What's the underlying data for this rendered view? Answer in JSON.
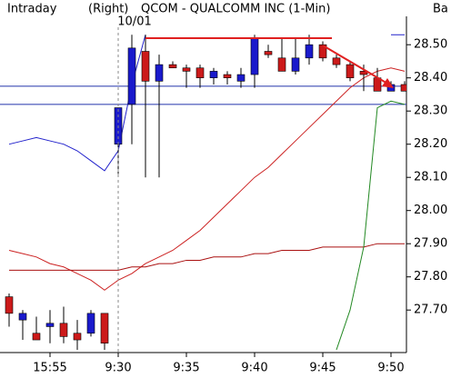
{
  "chart_data": {
    "type": "candlestick",
    "title_left": "Intraday",
    "side": "(Right)",
    "title": "QCOM - QUALCOMM INC (1-Min)",
    "corner": "Ba",
    "session_label": "10/01",
    "session_index": 8,
    "categories": [
      null,
      null,
      null,
      "15:55",
      null,
      null,
      null,
      null,
      "9:30",
      null,
      null,
      null,
      null,
      "9:35",
      null,
      null,
      null,
      null,
      "9:40",
      null,
      null,
      null,
      null,
      "9:45",
      null,
      null,
      null,
      null,
      "9:50",
      null
    ],
    "open": [
      27.74,
      27.67,
      27.63,
      27.65,
      27.66,
      27.63,
      27.63,
      27.69,
      28.2,
      28.32,
      28.48,
      28.39,
      28.44,
      28.43,
      28.43,
      28.4,
      28.41,
      28.39,
      28.41,
      28.48,
      28.46,
      28.42,
      28.46,
      28.5,
      28.46,
      28.44,
      28.42,
      28.4,
      28.36,
      28.38
    ],
    "high": [
      27.75,
      27.7,
      27.68,
      27.7,
      27.71,
      27.67,
      27.7,
      27.69,
      28.31,
      28.53,
      28.53,
      28.47,
      28.45,
      28.44,
      28.44,
      28.43,
      28.42,
      28.43,
      28.53,
      28.5,
      28.52,
      28.52,
      28.53,
      28.51,
      28.47,
      28.45,
      28.44,
      28.43,
      28.39,
      28.39
    ],
    "low": [
      27.65,
      27.61,
      27.61,
      27.6,
      27.6,
      27.58,
      27.62,
      27.58,
      28.11,
      28.2,
      28.1,
      28.1,
      28.43,
      28.37,
      28.37,
      28.38,
      28.38,
      28.37,
      28.37,
      28.46,
      28.42,
      28.41,
      28.44,
      28.45,
      28.43,
      28.39,
      28.36,
      28.36,
      28.36,
      28.36
    ],
    "close": [
      27.69,
      27.69,
      27.61,
      27.66,
      27.62,
      27.61,
      27.69,
      27.6,
      28.31,
      28.49,
      28.39,
      28.44,
      28.43,
      28.42,
      28.4,
      28.42,
      28.4,
      28.41,
      28.52,
      28.47,
      28.42,
      28.46,
      28.5,
      28.46,
      28.44,
      28.4,
      28.41,
      28.36,
      28.38,
      28.36
    ],
    "up_color": "#1a1acc",
    "down_color": "#cc1a1a",
    "lines": [
      {
        "color": "#2222cc",
        "values": [
          28.2,
          28.21,
          28.22,
          28.21,
          28.2,
          28.18,
          28.15,
          28.12,
          28.18,
          28.38,
          28.53,
          null,
          null,
          null,
          null,
          null,
          null,
          null,
          null,
          null,
          null,
          null,
          null,
          null,
          null,
          null,
          null,
          null,
          28.53,
          28.53
        ]
      },
      {
        "color": "#cc2222",
        "values": [
          27.88,
          27.87,
          27.86,
          27.84,
          27.83,
          27.81,
          27.79,
          27.76,
          27.79,
          27.81,
          27.84,
          27.86,
          27.88,
          27.91,
          27.94,
          27.98,
          28.02,
          28.06,
          28.1,
          28.13,
          28.17,
          28.21,
          28.25,
          28.29,
          28.33,
          28.37,
          28.4,
          28.42,
          28.43,
          28.42
        ]
      },
      {
        "color": "#aa1111",
        "values": [
          27.82,
          27.82,
          27.82,
          27.82,
          27.82,
          27.82,
          27.82,
          27.82,
          27.82,
          27.83,
          27.83,
          27.84,
          27.84,
          27.85,
          27.85,
          27.86,
          27.86,
          27.86,
          27.87,
          27.87,
          27.88,
          27.88,
          27.88,
          27.89,
          27.89,
          27.89,
          27.89,
          27.9,
          27.9,
          27.9
        ]
      },
      {
        "color": "#228822",
        "values": [
          null,
          null,
          null,
          null,
          null,
          null,
          null,
          null,
          null,
          null,
          null,
          null,
          null,
          null,
          null,
          null,
          null,
          null,
          null,
          null,
          null,
          null,
          null,
          null,
          27.58,
          27.7,
          27.89,
          28.31,
          28.33,
          28.32
        ]
      }
    ],
    "hlines": [
      {
        "value": 28.375,
        "color": "#2233aa"
      },
      {
        "value": 28.32,
        "color": "#2233aa"
      }
    ],
    "ylim": [
      27.58,
      28.58
    ],
    "yticks": [
      {
        "value": 28.5,
        "label": "28.50"
      },
      {
        "value": 28.4,
        "label": "28.40"
      },
      {
        "value": 28.3,
        "label": "28.30"
      },
      {
        "value": 28.2,
        "label": "28.20"
      },
      {
        "value": 28.1,
        "label": "28.10"
      },
      {
        "value": 28.0,
        "label": "28.00"
      },
      {
        "value": 27.9,
        "label": "27.90"
      },
      {
        "value": 27.8,
        "label": "27.80"
      },
      {
        "value": 27.7,
        "label": "27.70"
      }
    ]
  }
}
